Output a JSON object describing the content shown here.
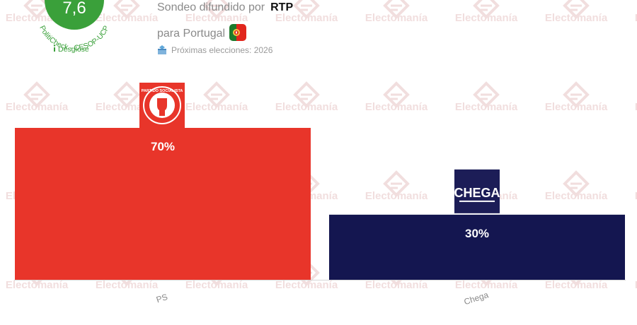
{
  "badge": {
    "score": "7,6",
    "pollster": "PolitiCheck - CESOP-UCP",
    "desglose": "Desglose",
    "info_icon": "info-icon"
  },
  "info": {
    "line1_prefix": "Sondeo difundido por",
    "source": "RTP",
    "line2": "para Portugal",
    "flag_icon": "portugal-flag-icon",
    "ballot_icon": "ballot-box-icon",
    "next_elections": "Próximas elecciones: 2026"
  },
  "watermark": {
    "text": "Electomanía",
    "color": "#f1dede"
  },
  "chart_data": {
    "type": "bar",
    "categories": [
      "PS",
      "Chega"
    ],
    "values": [
      70,
      30
    ],
    "value_labels": [
      "70%",
      "30%"
    ],
    "colors": [
      "#e8352a",
      "#141650"
    ],
    "logos": [
      {
        "icon": "partido-socialista-logo",
        "text": "PARTIDO SOCIALISTA"
      },
      {
        "icon": "chega-logo",
        "text": "CHEGA"
      }
    ],
    "ylim": [
      0,
      100
    ]
  }
}
